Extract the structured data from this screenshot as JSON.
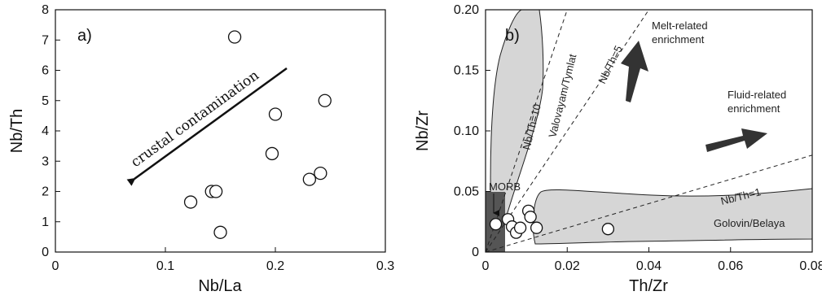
{
  "chart_data": [
    {
      "type": "scatter",
      "panel_label": "a)",
      "xlabel": "Nb/La",
      "ylabel": "Nb/Th",
      "xlim": [
        0,
        0.3
      ],
      "ylim": [
        0,
        8
      ],
      "xticks": [
        "0",
        "0.1",
        "0.2",
        "0.3"
      ],
      "yticks": [
        "0",
        "1",
        "2",
        "3",
        "4",
        "5",
        "6",
        "7",
        "8"
      ],
      "points": [
        {
          "x": 0.123,
          "y": 1.65
        },
        {
          "x": 0.142,
          "y": 2.0
        },
        {
          "x": 0.146,
          "y": 2.0
        },
        {
          "x": 0.15,
          "y": 0.65
        },
        {
          "x": 0.163,
          "y": 7.1
        },
        {
          "x": 0.197,
          "y": 3.25
        },
        {
          "x": 0.2,
          "y": 4.55
        },
        {
          "x": 0.231,
          "y": 2.4
        },
        {
          "x": 0.241,
          "y": 2.6
        },
        {
          "x": 0.245,
          "y": 5.0
        }
      ],
      "annotations": {
        "arrow_text": "crustal contamination"
      }
    },
    {
      "type": "scatter",
      "panel_label": "b)",
      "xlabel": "Th/Zr",
      "ylabel": "Nb/Zr",
      "xlim": [
        0,
        0.08
      ],
      "ylim": [
        0,
        0.2
      ],
      "xticks": [
        "0",
        "0.02",
        "0.04",
        "0.06",
        "0.08"
      ],
      "yticks": [
        "0",
        "0.05",
        "0.10",
        "0.15",
        "0.20"
      ],
      "points": [
        {
          "x": 0.0025,
          "y": 0.023
        },
        {
          "x": 0.0055,
          "y": 0.027
        },
        {
          "x": 0.0065,
          "y": 0.021
        },
        {
          "x": 0.0075,
          "y": 0.016
        },
        {
          "x": 0.0085,
          "y": 0.02
        },
        {
          "x": 0.0105,
          "y": 0.034
        },
        {
          "x": 0.011,
          "y": 0.029
        },
        {
          "x": 0.0125,
          "y": 0.02
        },
        {
          "x": 0.03,
          "y": 0.019
        }
      ],
      "reference_lines": [
        {
          "label": "Nb/Th=10",
          "slope": 10
        },
        {
          "label": "Nb/Th=5",
          "slope": 5
        },
        {
          "label": "Nb/Th=1",
          "slope": 1
        }
      ],
      "fields": [
        {
          "label": "MORB"
        },
        {
          "label": "Valovayam/Tymlat"
        },
        {
          "label": "Golovin/Belaya"
        }
      ],
      "annotations": {
        "melt_line1": "Melt-related",
        "melt_line2": "enrichment",
        "fluid_line1": "Fluid-related",
        "fluid_line2": "enrichment"
      },
      "colors": {
        "field_fill": "#d6d6d6",
        "morb_fill": "#555555",
        "arrow": "#333333"
      }
    }
  ]
}
